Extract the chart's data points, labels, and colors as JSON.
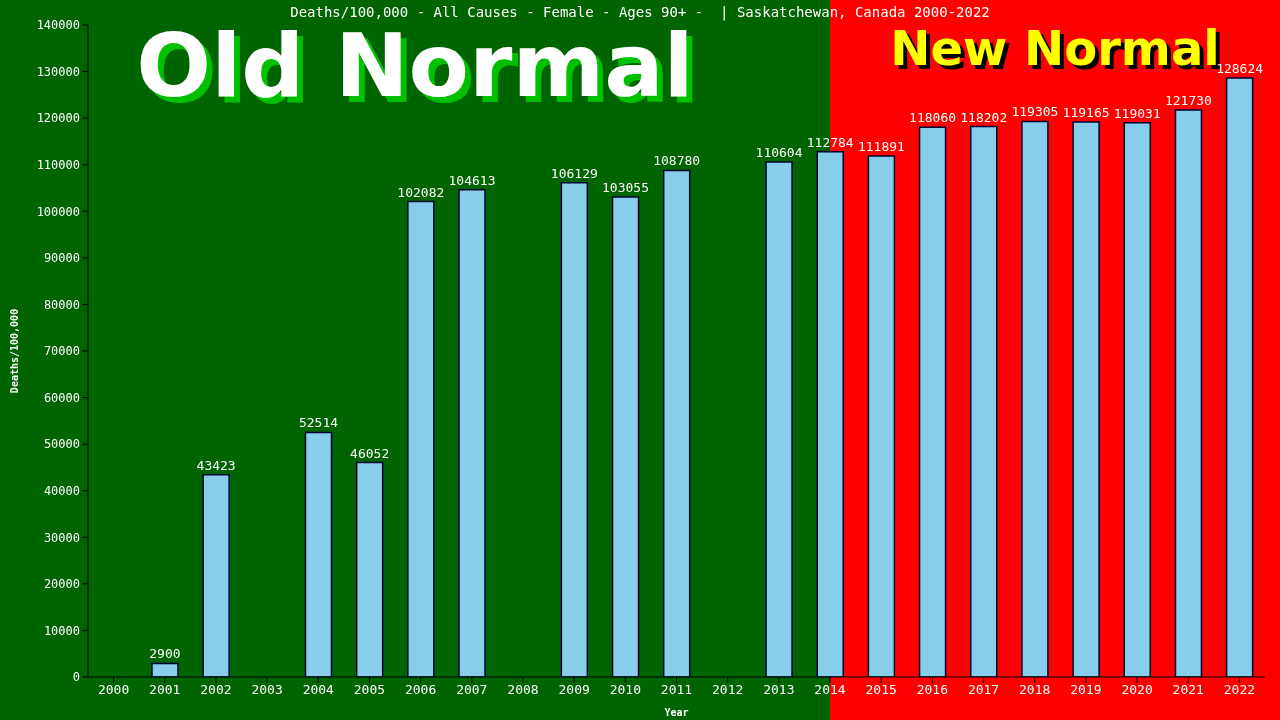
{
  "chart_data": {
    "type": "bar",
    "title": "Deaths/100,000 - All Causes - Female - Ages 90+ -  | Saskatchewan, Canada 2000-2022",
    "xlabel": "Year",
    "ylabel": "Deaths/100,000",
    "categories": [
      "2000",
      "2001",
      "2002",
      "2003",
      "2004",
      "2005",
      "2006",
      "2007",
      "2008",
      "2009",
      "2010",
      "2011",
      "2012",
      "2013",
      "2014",
      "2015",
      "2016",
      "2017",
      "2018",
      "2019",
      "2020",
      "2021",
      "2022"
    ],
    "values": [
      null,
      2900,
      43423,
      null,
      52514,
      46052,
      102082,
      104613,
      null,
      106129,
      103055,
      108780,
      null,
      110604,
      112784,
      111891,
      118060,
      118202,
      119305,
      119165,
      119031,
      121730,
      128624
    ],
    "color": "#87ceeb",
    "ylim": [
      0,
      140000
    ],
    "yticks": [
      0,
      10000,
      20000,
      30000,
      40000,
      50000,
      60000,
      70000,
      80000,
      90000,
      100000,
      110000,
      120000,
      130000,
      140000
    ],
    "bands": [
      {
        "axis": "x",
        "from": "2000",
        "to": "2014",
        "color": "#006400",
        "label": "Old Normal"
      },
      {
        "axis": "x",
        "from": "2014",
        "to": "2022",
        "color": "#ff0000",
        "label": "New Normal"
      }
    ],
    "data_labels": true
  }
}
